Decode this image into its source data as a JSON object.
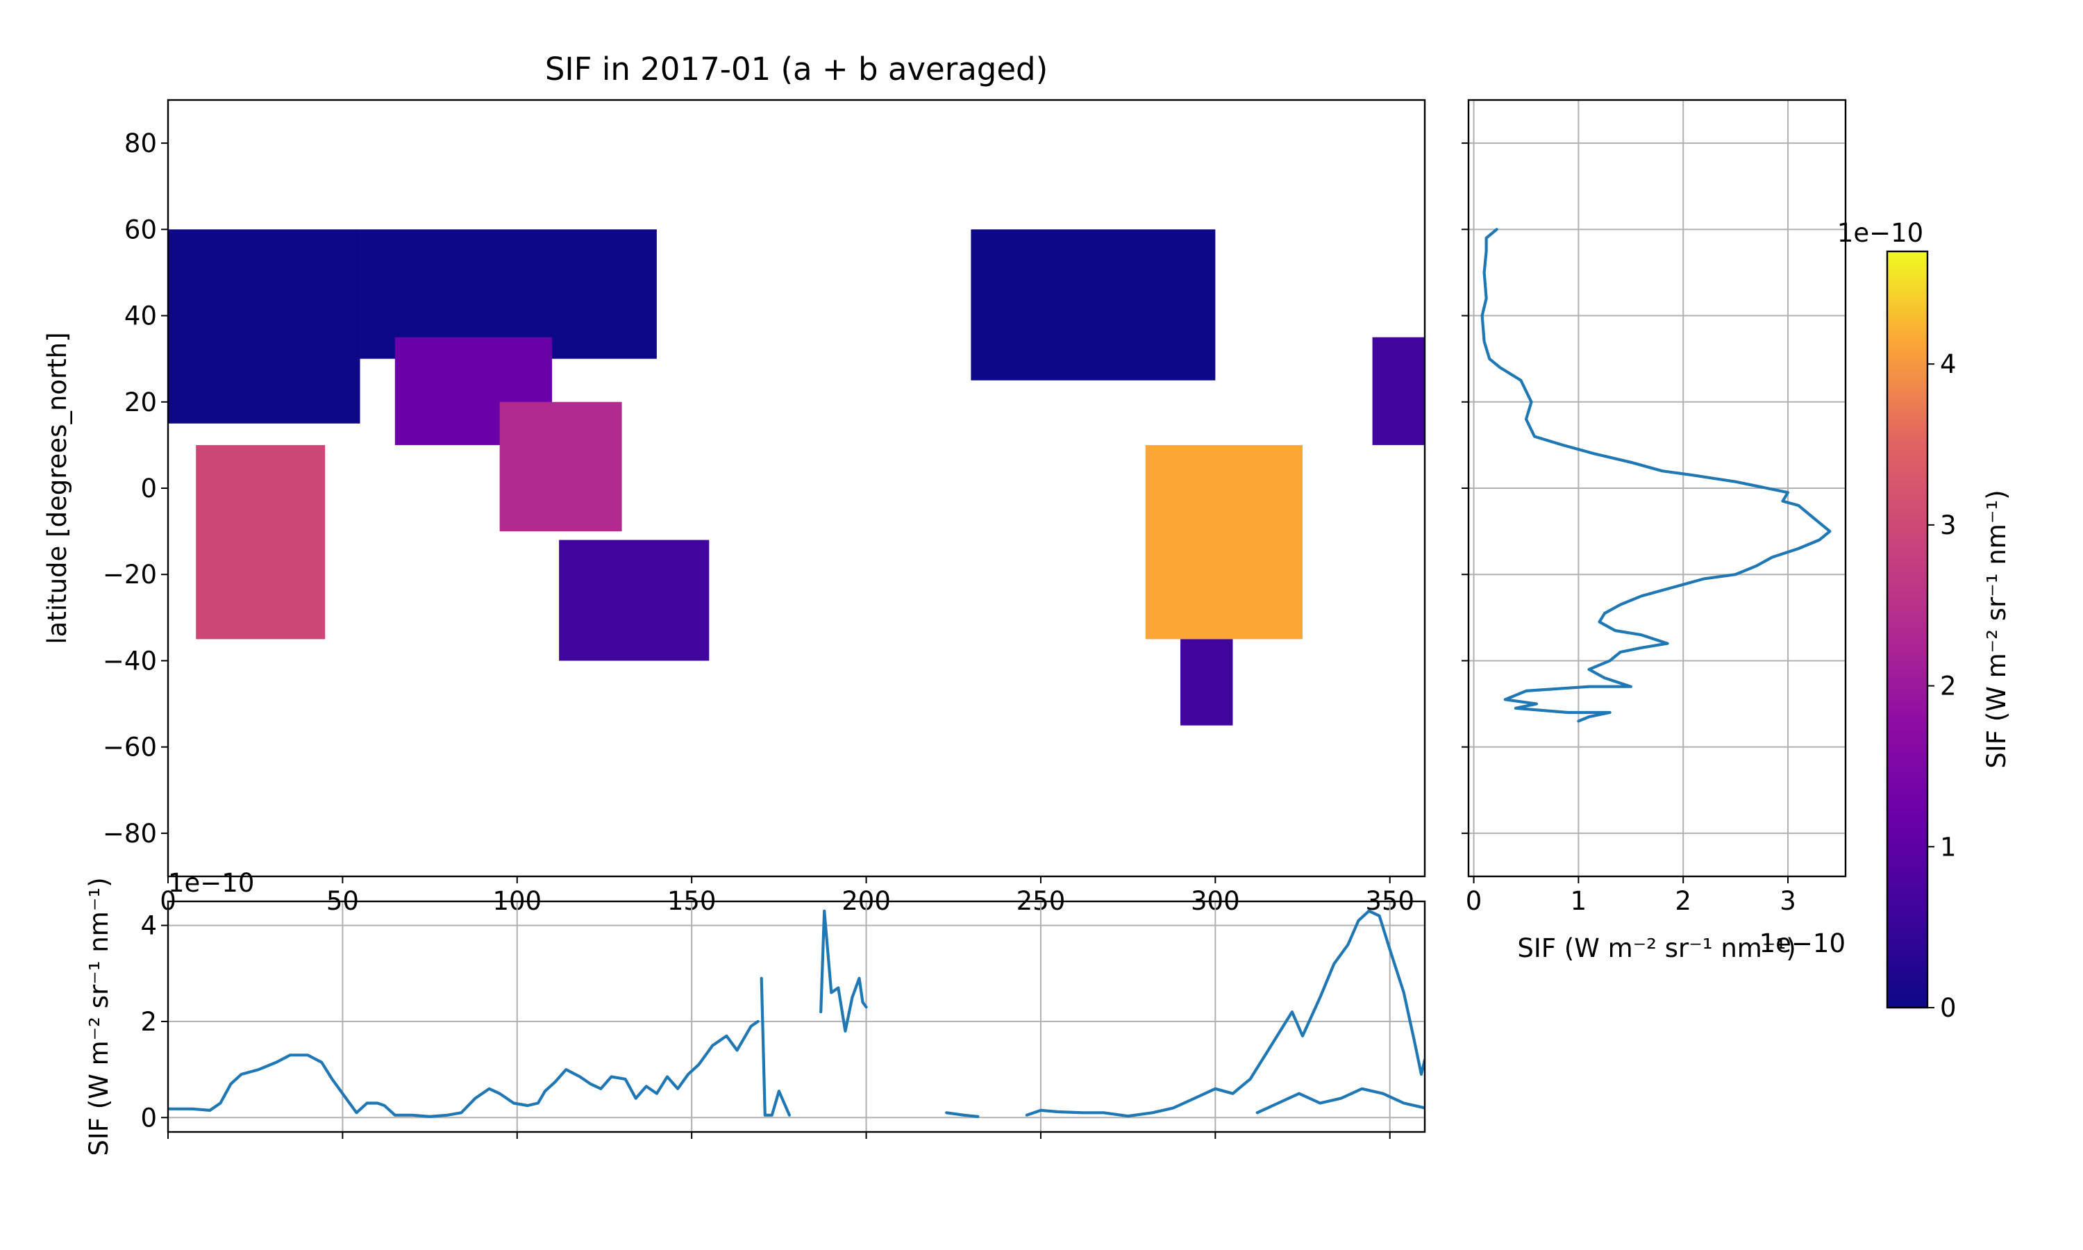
{
  "chart_data": [
    {
      "type": "heatmap",
      "title": "SIF in 2017-01 (a + b averaged)",
      "ylabel": "latitude [degrees_north]",
      "xlim": [
        0,
        360
      ],
      "ylim": [
        -90,
        90
      ],
      "x_ticks": [
        "0",
        "50",
        "100",
        "150",
        "200",
        "250",
        "300",
        "350"
      ],
      "y_ticks": [
        "−80",
        "−60",
        "−40",
        "−20",
        "0",
        "20",
        "40",
        "60",
        "80"
      ],
      "colormap": "plasma",
      "data_regions": [
        {
          "lon": [
            0,
            55
          ],
          "lat": [
            15,
            60
          ],
          "value": 0.25
        },
        {
          "lon": [
            55,
            140
          ],
          "lat": [
            30,
            60
          ],
          "value": 0.15
        },
        {
          "lon": [
            65,
            110
          ],
          "lat": [
            10,
            35
          ],
          "value": 1.2
        },
        {
          "lon": [
            8,
            45
          ],
          "lat": [
            -35,
            10
          ],
          "value": 3.0
        },
        {
          "lon": [
            95,
            130
          ],
          "lat": [
            -10,
            20
          ],
          "value": 2.5
        },
        {
          "lon": [
            112,
            155
          ],
          "lat": [
            -40,
            -12
          ],
          "value": 0.6
        },
        {
          "lon": [
            230,
            300
          ],
          "lat": [
            25,
            60
          ],
          "value": 0.2
        },
        {
          "lon": [
            280,
            325
          ],
          "lat": [
            -35,
            10
          ],
          "value": 4.0
        },
        {
          "lon": [
            290,
            305
          ],
          "lat": [
            -55,
            -35
          ],
          "value": 0.8
        },
        {
          "lon": [
            345,
            360
          ],
          "lat": [
            10,
            35
          ],
          "value": 0.3
        }
      ]
    },
    {
      "type": "line",
      "xlabel": "SIF (W m⁻² sr⁻¹ nm⁻¹)",
      "x_scale_label": "1e−10",
      "x_ticks": [
        "0",
        "1",
        "2",
        "3"
      ],
      "xlim": [
        -0.05,
        3.55
      ],
      "ylim": [
        -90,
        90
      ],
      "grid": true,
      "series": [
        {
          "points": [
            [
              0.22,
              60
            ],
            [
              0.12,
              58
            ],
            [
              0.12,
              55
            ],
            [
              0.1,
              50
            ],
            [
              0.12,
              44
            ],
            [
              0.08,
              40
            ],
            [
              0.1,
              34
            ],
            [
              0.15,
              30
            ],
            [
              0.25,
              28
            ],
            [
              0.45,
              25
            ],
            [
              0.55,
              20
            ],
            [
              0.5,
              16
            ],
            [
              0.58,
              12
            ],
            [
              0.85,
              10
            ],
            [
              1.15,
              8
            ],
            [
              1.5,
              6
            ],
            [
              1.8,
              4
            ],
            [
              2.1,
              3
            ],
            [
              2.5,
              1.5
            ],
            [
              2.8,
              0
            ],
            [
              3.0,
              -1
            ],
            [
              2.95,
              -3
            ],
            [
              3.1,
              -4
            ],
            [
              3.2,
              -6
            ],
            [
              3.3,
              -8
            ],
            [
              3.4,
              -10
            ],
            [
              3.3,
              -12
            ],
            [
              3.1,
              -14
            ],
            [
              2.85,
              -16
            ],
            [
              2.7,
              -18
            ],
            [
              2.5,
              -20
            ],
            [
              2.2,
              -21
            ],
            [
              1.9,
              -23
            ],
            [
              1.6,
              -25
            ],
            [
              1.4,
              -27
            ],
            [
              1.25,
              -29
            ],
            [
              1.2,
              -31
            ],
            [
              1.35,
              -33
            ],
            [
              1.6,
              -34
            ],
            [
              1.85,
              -36
            ],
            [
              1.6,
              -37
            ],
            [
              1.4,
              -38
            ],
            [
              1.3,
              -40
            ],
            [
              1.1,
              -42
            ],
            [
              1.25,
              -44
            ],
            [
              1.5,
              -46
            ],
            [
              1.1,
              -46
            ],
            [
              0.5,
              -47
            ],
            [
              0.3,
              -49
            ],
            [
              0.6,
              -50
            ],
            [
              0.4,
              -51
            ],
            [
              0.9,
              -52
            ],
            [
              1.3,
              -52
            ],
            [
              1.1,
              -53
            ],
            [
              1.0,
              -54
            ]
          ]
        }
      ]
    },
    {
      "type": "line",
      "ylabel": "SIF (W m⁻² sr⁻¹ nm⁻¹)",
      "y_scale_label": "1e−10",
      "y_ticks": [
        "0",
        "2",
        "4"
      ],
      "xlim": [
        0,
        360
      ],
      "ylim": [
        -0.3,
        4.5
      ],
      "grid": true,
      "segments": [
        [
          [
            0,
            0.18
          ],
          [
            7,
            0.18
          ],
          [
            12,
            0.15
          ],
          [
            15,
            0.3
          ],
          [
            18,
            0.7
          ],
          [
            21,
            0.9
          ],
          [
            26,
            1.0
          ],
          [
            31,
            1.15
          ],
          [
            35,
            1.3
          ],
          [
            40,
            1.3
          ],
          [
            44,
            1.15
          ],
          [
            47,
            0.8
          ],
          [
            51,
            0.4
          ],
          [
            54,
            0.1
          ],
          [
            57,
            0.3
          ],
          [
            60,
            0.3
          ],
          [
            62,
            0.25
          ],
          [
            65,
            0.05
          ],
          [
            70,
            0.05
          ],
          [
            75,
            0.02
          ],
          [
            80,
            0.05
          ],
          [
            84,
            0.1
          ],
          [
            88,
            0.4
          ],
          [
            92,
            0.6
          ],
          [
            95,
            0.5
          ],
          [
            99,
            0.3
          ],
          [
            103,
            0.25
          ],
          [
            106,
            0.3
          ],
          [
            108,
            0.55
          ],
          [
            111,
            0.75
          ],
          [
            114,
            1.0
          ],
          [
            118,
            0.85
          ],
          [
            121,
            0.7
          ],
          [
            124,
            0.6
          ],
          [
            127,
            0.85
          ],
          [
            131,
            0.8
          ],
          [
            134,
            0.4
          ],
          [
            137,
            0.65
          ],
          [
            140,
            0.5
          ],
          [
            143,
            0.85
          ],
          [
            146,
            0.6
          ],
          [
            149,
            0.9
          ],
          [
            152,
            1.1
          ],
          [
            156,
            1.5
          ],
          [
            160,
            1.7
          ],
          [
            163,
            1.4
          ],
          [
            167,
            1.9
          ],
          [
            169,
            2.0
          ]
        ],
        [
          [
            170,
            2.9
          ],
          [
            171,
            0.05
          ],
          [
            173,
            0.05
          ],
          [
            175,
            0.55
          ],
          [
            178,
            0.05
          ]
        ],
        [
          [
            187,
            2.2
          ],
          [
            188,
            4.3
          ],
          [
            190,
            2.6
          ],
          [
            192,
            2.7
          ],
          [
            194,
            1.8
          ],
          [
            196,
            2.5
          ],
          [
            198,
            2.9
          ],
          [
            199,
            2.4
          ],
          [
            200,
            2.3
          ]
        ],
        [
          [
            223,
            0.1
          ],
          [
            228,
            0.05
          ],
          [
            232,
            0.02
          ]
        ],
        [
          [
            246,
            0.05
          ],
          [
            250,
            0.15
          ],
          [
            255,
            0.12
          ],
          [
            262,
            0.1
          ],
          [
            268,
            0.1
          ],
          [
            275,
            0.03
          ],
          [
            282,
            0.1
          ],
          [
            288,
            0.2
          ],
          [
            294,
            0.4
          ],
          [
            300,
            0.6
          ],
          [
            305,
            0.5
          ],
          [
            310,
            0.8
          ],
          [
            316,
            1.5
          ],
          [
            322,
            2.2
          ],
          [
            325,
            1.7
          ],
          [
            330,
            2.5
          ],
          [
            334,
            3.2
          ],
          [
            338,
            3.6
          ],
          [
            341,
            4.1
          ],
          [
            344,
            4.3
          ],
          [
            347,
            4.2
          ],
          [
            350,
            3.5
          ],
          [
            354,
            2.6
          ],
          [
            357,
            1.6
          ],
          [
            359,
            0.9
          ],
          [
            360,
            1.2
          ]
        ],
        [
          [
            312,
            0.1
          ],
          [
            318,
            0.3
          ],
          [
            324,
            0.5
          ],
          [
            330,
            0.3
          ],
          [
            336,
            0.4
          ],
          [
            342,
            0.6
          ],
          [
            348,
            0.5
          ],
          [
            354,
            0.3
          ],
          [
            360,
            0.2
          ]
        ]
      ]
    },
    {
      "type": "colorbar",
      "label": "SIF (W m⁻² sr⁻¹ nm⁻¹)",
      "scale_label": "1e−10",
      "ticks": [
        "0",
        "1",
        "2",
        "3",
        "4"
      ],
      "range": [
        0,
        4.7
      ]
    }
  ]
}
